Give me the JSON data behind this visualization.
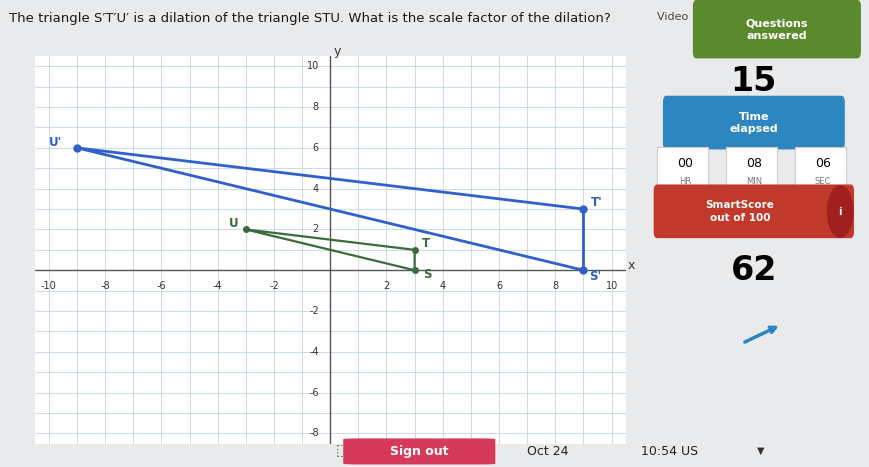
{
  "title_text": "The triangle S′T′U′ is a dilation of the triangle STU. What is the scale factor of the dilation?",
  "triangle_STU": {
    "S": [
      3,
      0
    ],
    "T": [
      3,
      1
    ],
    "U": [
      -3,
      2
    ],
    "color": "#3a6b3a",
    "linewidth": 1.6
  },
  "triangle_S1T1U1": {
    "S": [
      9,
      0
    ],
    "T": [
      9,
      3
    ],
    "U": [
      -9,
      6
    ],
    "color": "#3060cc",
    "linewidth": 2.0
  },
  "xlim": [
    -10.5,
    10.5
  ],
  "ylim": [
    -8.5,
    10.5
  ],
  "xticks": [
    -10,
    -8,
    -6,
    -4,
    -2,
    2,
    4,
    6,
    8,
    10
  ],
  "yticks": [
    -8,
    -6,
    -4,
    -2,
    2,
    4,
    6,
    8,
    10
  ],
  "grid_color": "#b8cce0",
  "graph_bg": "white",
  "main_bg": "#e8eaec",
  "right_bg": "#f2f2f2",
  "questions_answered_bg": "#5b8a2e",
  "questions_answered_text": "Questions\nanswered",
  "questions_count": "15",
  "time_elapsed_bg": "#2e86c1",
  "time_elapsed_text": "Time\nelapsed",
  "time_vals": [
    "00",
    "08",
    "06"
  ],
  "time_lbls": [
    "HR",
    "MIN",
    "SEC"
  ],
  "smartscore_bg": "#c0392b",
  "smartscore_text": "SmartScore\nout of 100",
  "smartscore_value": "62",
  "video_text": "Video",
  "sign_out_text": "Sign out",
  "date_text": "Oct 24",
  "time_text": "10:54 US"
}
